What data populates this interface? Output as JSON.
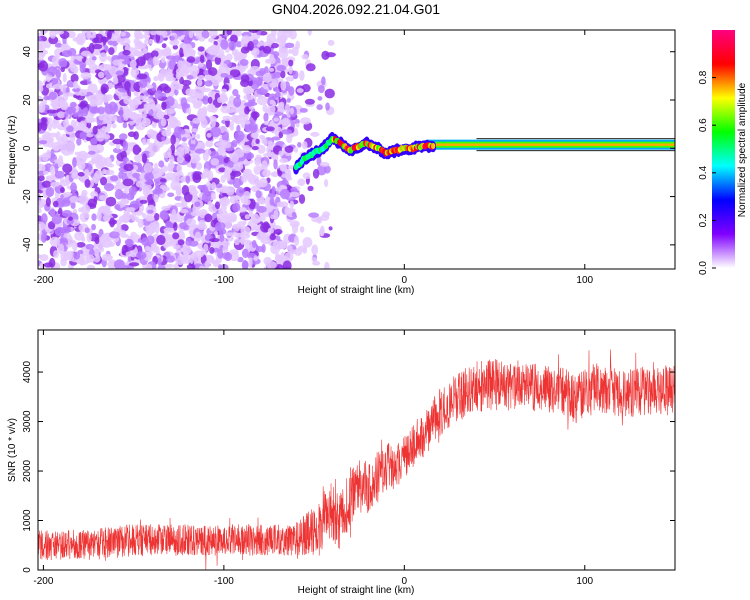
{
  "title": "GN04.2026.092.21.04.G01",
  "chart_data": [
    {
      "type": "heatmap",
      "name": "spectrogram",
      "xlabel": "Height of straight line (km)",
      "ylabel": "Frequency (Hz)",
      "xlim": [
        -203,
        150
      ],
      "ylim": [
        -50,
        49
      ],
      "xticks": [
        -200,
        -100,
        0,
        100
      ],
      "yticks": [
        -40,
        -20,
        0,
        20,
        40
      ],
      "xtick_labels": [
        "-200",
        "-100",
        "0",
        "100"
      ],
      "ytick_labels": [
        "-40",
        "-20",
        "0",
        "20",
        "40"
      ],
      "noise_region_x": [
        -203,
        -40
      ],
      "tone_track": {
        "x": [
          -60,
          -55,
          -50,
          -45,
          -40,
          -35,
          -30,
          -25,
          -20,
          -15,
          -10,
          -5,
          0,
          5,
          10,
          20,
          40,
          60,
          80,
          100,
          120,
          150
        ],
        "y": [
          -8,
          -4,
          -2,
          0,
          4,
          2,
          -1,
          1,
          2,
          0,
          -2,
          -1,
          0,
          0,
          1,
          1,
          1.5,
          1.5,
          1.5,
          1.5,
          1.5,
          1.5
        ]
      },
      "colorbar": {
        "label": "Normalized spectral amplitude",
        "range": [
          0,
          1
        ],
        "ticks": [
          0.0,
          0.2,
          0.4,
          0.6,
          0.8
        ],
        "tick_labels": [
          "0.0",
          "0.2",
          "0.4",
          "0.6",
          "0.8"
        ],
        "colors": [
          "#ffffff",
          "#8000ff",
          "#0000ff",
          "#00ffff",
          "#00ff00",
          "#ffff00",
          "#ff0000",
          "#ff0080"
        ]
      }
    },
    {
      "type": "line",
      "name": "snr",
      "xlabel": "Height of straight line (km)",
      "ylabel": "SNR (10 * v/v)",
      "xlim": [
        -203,
        150
      ],
      "ylim": [
        0,
        4850
      ],
      "xticks": [
        -200,
        -100,
        0,
        100
      ],
      "yticks": [
        0,
        1000,
        2000,
        3000,
        4000
      ],
      "xtick_labels": [
        "-200",
        "-100",
        "0",
        "100"
      ],
      "ytick_labels": [
        "0",
        "1000",
        "2000",
        "3000",
        "4000"
      ],
      "color": "#ee3333",
      "series": [
        {
          "name": "SNR envelope",
          "x": [
            -203,
            -190,
            -170,
            -150,
            -130,
            -110,
            -90,
            -70,
            -60,
            -50,
            -45,
            -40,
            -35,
            -30,
            -25,
            -20,
            -15,
            -10,
            -5,
            0,
            10,
            20,
            30,
            40,
            50,
            60,
            70,
            80,
            90,
            95,
            100,
            110,
            120,
            130,
            140,
            150
          ],
          "mean": [
            500,
            500,
            520,
            600,
            620,
            600,
            610,
            600,
            620,
            800,
            1000,
            1200,
            1000,
            1500,
            1700,
            1600,
            1900,
            2100,
            2000,
            2300,
            2700,
            3200,
            3500,
            3700,
            3750,
            3700,
            3700,
            3650,
            3600,
            3400,
            3600,
            3700,
            3550,
            3600,
            3650,
            3650
          ],
          "amp": [
            300,
            300,
            320,
            330,
            320,
            320,
            320,
            320,
            340,
            500,
            600,
            650,
            650,
            600,
            560,
            560,
            500,
            500,
            480,
            450,
            450,
            500,
            500,
            520,
            520,
            480,
            480,
            480,
            480,
            500,
            500,
            550,
            500,
            500,
            500,
            500
          ]
        }
      ]
    }
  ]
}
